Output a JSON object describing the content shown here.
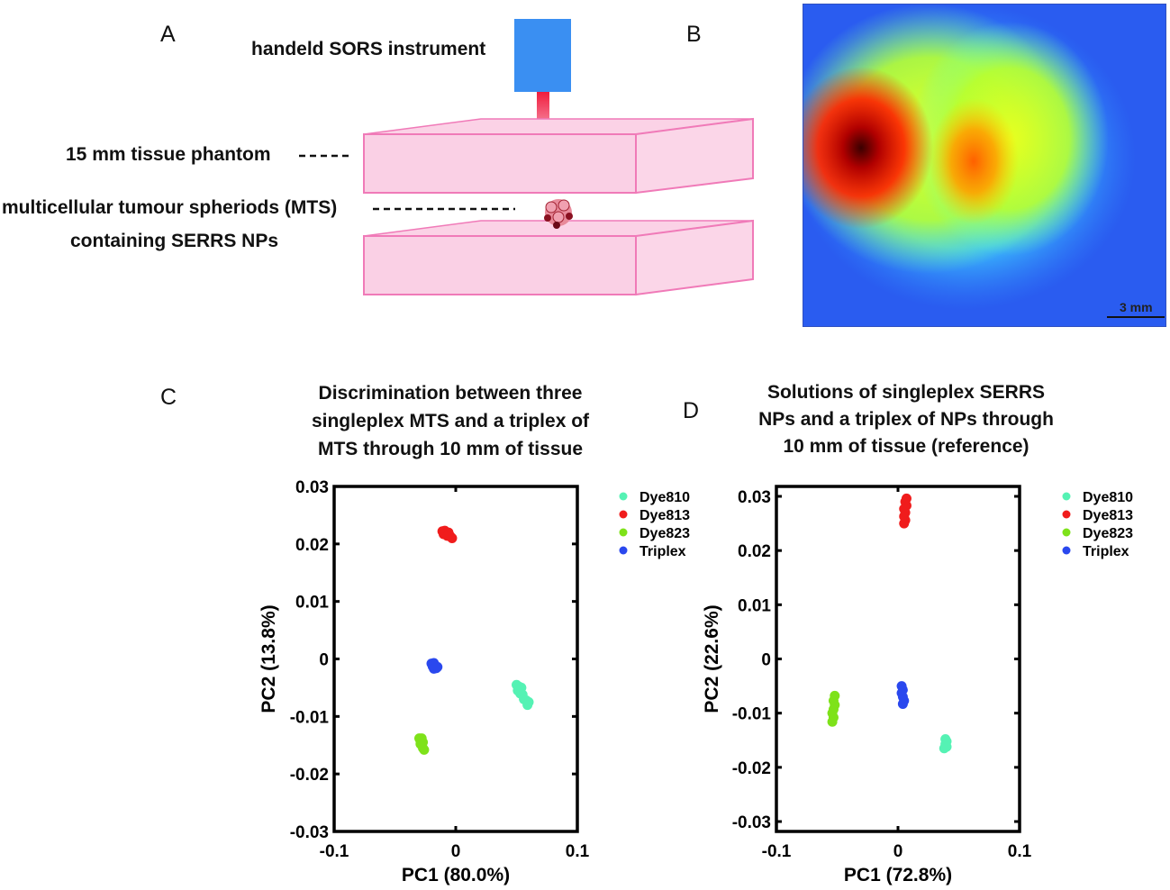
{
  "panels": {
    "a": {
      "letter": "A",
      "instrument_label": "handeld SORS instrument",
      "phantom_label": "15 mm tissue phantom",
      "mts_label_line1": "multicellular tumour spheriods (MTS)",
      "mts_label_line2": "containing SERRS NPs",
      "colors": {
        "instrument": "#3a8ff2",
        "laser": "#f0304a",
        "phantom": "#f9c8e0",
        "phantom_edge": "#f07ab8"
      }
    },
    "b": {
      "letter": "B",
      "scale_bar_label": "3 mm",
      "image": "false-color SORS intensity heat map (jet colormap)"
    },
    "c": {
      "letter": "C"
    },
    "d": {
      "letter": "D"
    }
  },
  "chart_data": [
    {
      "type": "scatter",
      "panel": "C",
      "title_lines": [
        "Discrimination between three",
        "singleplex MTS and a triplex of",
        "MTS through 10 mm of tissue"
      ],
      "xlabel": "PC1  (80.0%)",
      "ylabel": "PC2  (13.8%)",
      "xlim": [
        -0.1,
        0.1
      ],
      "ylim": [
        -0.03,
        0.03
      ],
      "xticks": [
        "-0.1",
        "0",
        "0.1"
      ],
      "yticks": [
        "0.03",
        "0.02",
        "0.01",
        "0",
        "-0.01",
        "-0.02",
        "-0.03"
      ],
      "legend_placement": "outside-right",
      "series": [
        {
          "name": "Dye810",
          "color": "#55f2b4",
          "points": [
            [
              0.05,
              -0.0045
            ],
            [
              0.052,
              -0.0048
            ],
            [
              0.054,
              -0.005
            ],
            [
              0.051,
              -0.0055
            ],
            [
              0.053,
              -0.006
            ],
            [
              0.055,
              -0.0062
            ],
            [
              0.056,
              -0.007
            ],
            [
              0.058,
              -0.0072
            ],
            [
              0.06,
              -0.0075
            ],
            [
              0.059,
              -0.008
            ]
          ]
        },
        {
          "name": "Dye813",
          "color": "#f01c1c",
          "points": [
            [
              -0.011,
              0.0222
            ],
            [
              -0.009,
              0.0223
            ],
            [
              -0.008,
              0.0218
            ],
            [
              -0.006,
              0.022
            ],
            [
              -0.005,
              0.0215
            ],
            [
              -0.004,
              0.0212
            ],
            [
              -0.003,
              0.021
            ],
            [
              -0.01,
              0.0217
            ],
            [
              -0.007,
              0.0214
            ]
          ]
        },
        {
          "name": "Dye823",
          "color": "#7ee21a",
          "points": [
            [
              -0.03,
              -0.0138
            ],
            [
              -0.028,
              -0.0138
            ],
            [
              -0.029,
              -0.0143
            ],
            [
              -0.027,
              -0.0145
            ],
            [
              -0.028,
              -0.015
            ],
            [
              -0.027,
              -0.0155
            ],
            [
              -0.026,
              -0.0158
            ],
            [
              -0.029,
              -0.0148
            ]
          ]
        },
        {
          "name": "Triplex",
          "color": "#2a48ee",
          "points": [
            [
              -0.02,
              -0.0008
            ],
            [
              -0.018,
              -0.0007
            ],
            [
              -0.019,
              -0.0013
            ],
            [
              -0.017,
              -0.0012
            ],
            [
              -0.016,
              -0.0016
            ],
            [
              -0.018,
              -0.0017
            ],
            [
              -0.015,
              -0.0014
            ]
          ]
        }
      ]
    },
    {
      "type": "scatter",
      "panel": "D",
      "title_lines": [
        "Solutions of singleplex SERRS",
        "NPs and a triplex of NPs through",
        "10 mm of tissue (reference)"
      ],
      "xlabel": "PC1  (72.8%)",
      "ylabel": "PC2  (22.6%)",
      "xlim": [
        -0.1,
        0.1
      ],
      "ylim": [
        -0.03,
        0.03
      ],
      "xticks": [
        "-0.1",
        "0",
        "0.1"
      ],
      "yticks": [
        "0.03",
        "0.02",
        "0.01",
        "0",
        "-0.01",
        "-0.02",
        "-0.03"
      ],
      "legend_placement": "outside-right",
      "series": [
        {
          "name": "Dye810",
          "color": "#55f2b4",
          "points": [
            [
              0.039,
              -0.0148
            ],
            [
              0.04,
              -0.0152
            ],
            [
              0.039,
              -0.0157
            ],
            [
              0.04,
              -0.0162
            ],
            [
              0.038,
              -0.0165
            ]
          ]
        },
        {
          "name": "Dye813",
          "color": "#f01c1c",
          "points": [
            [
              0.007,
              0.0296
            ],
            [
              0.006,
              0.029
            ],
            [
              0.007,
              0.0283
            ],
            [
              0.005,
              0.0277
            ],
            [
              0.006,
              0.027
            ],
            [
              0.005,
              0.0263
            ],
            [
              0.006,
              0.0256
            ],
            [
              0.005,
              0.025
            ]
          ]
        },
        {
          "name": "Dye823",
          "color": "#7ee21a",
          "points": [
            [
              -0.052,
              -0.0068
            ],
            [
              -0.053,
              -0.0077
            ],
            [
              -0.052,
              -0.0085
            ],
            [
              -0.053,
              -0.0093
            ],
            [
              -0.054,
              -0.01
            ],
            [
              -0.053,
              -0.0108
            ],
            [
              -0.054,
              -0.0116
            ]
          ]
        },
        {
          "name": "Triplex",
          "color": "#2a48ee",
          "points": [
            [
              0.003,
              -0.005
            ],
            [
              0.004,
              -0.0057
            ],
            [
              0.003,
              -0.0063
            ],
            [
              0.004,
              -0.007
            ],
            [
              0.005,
              -0.0077
            ],
            [
              0.004,
              -0.0083
            ]
          ]
        }
      ]
    }
  ]
}
